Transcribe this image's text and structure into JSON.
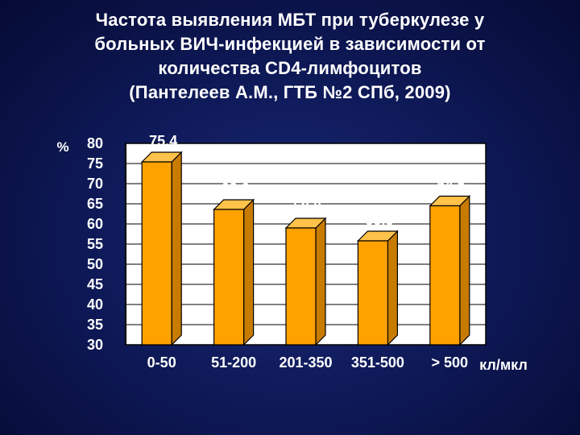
{
  "title_lines": [
    "Частота выявления МБТ при туберкулезе у",
    "больных ВИЧ-инфекцией в зависимости от",
    "количества CD4-лимфоцитов",
    "(Пантелеев А.М., ГТБ №2 СПб, 2009)"
  ],
  "chart_data": {
    "type": "bar",
    "title": "Частота выявления МБТ при туберкулезе у больных ВИЧ-инфекцией в зависимости от количества CD4-лимфоцитов (Пантелеев А.М., ГТБ №2 СПб, 2009)",
    "categories": [
      "0-50",
      "51-200",
      "201-350",
      "351-500",
      "> 500"
    ],
    "values": [
      75.4,
      63.6,
      59.0,
      55.8,
      64.5
    ],
    "value_labels": [
      "75,4",
      "63,6",
      "59,0",
      "55,8",
      "64,5"
    ],
    "ylabel": "%",
    "xlabel": "кл/мкл",
    "ylim": [
      30,
      80
    ],
    "yticks": [
      30,
      35,
      40,
      45,
      50,
      55,
      60,
      65,
      70,
      75,
      80
    ],
    "grid": true,
    "colors": {
      "bar_front": "#ffa200",
      "bar_side": "#c77b00",
      "bar_top": "#ffc24a",
      "plot_background": "#ffffff",
      "text": "#ffffff"
    }
  }
}
